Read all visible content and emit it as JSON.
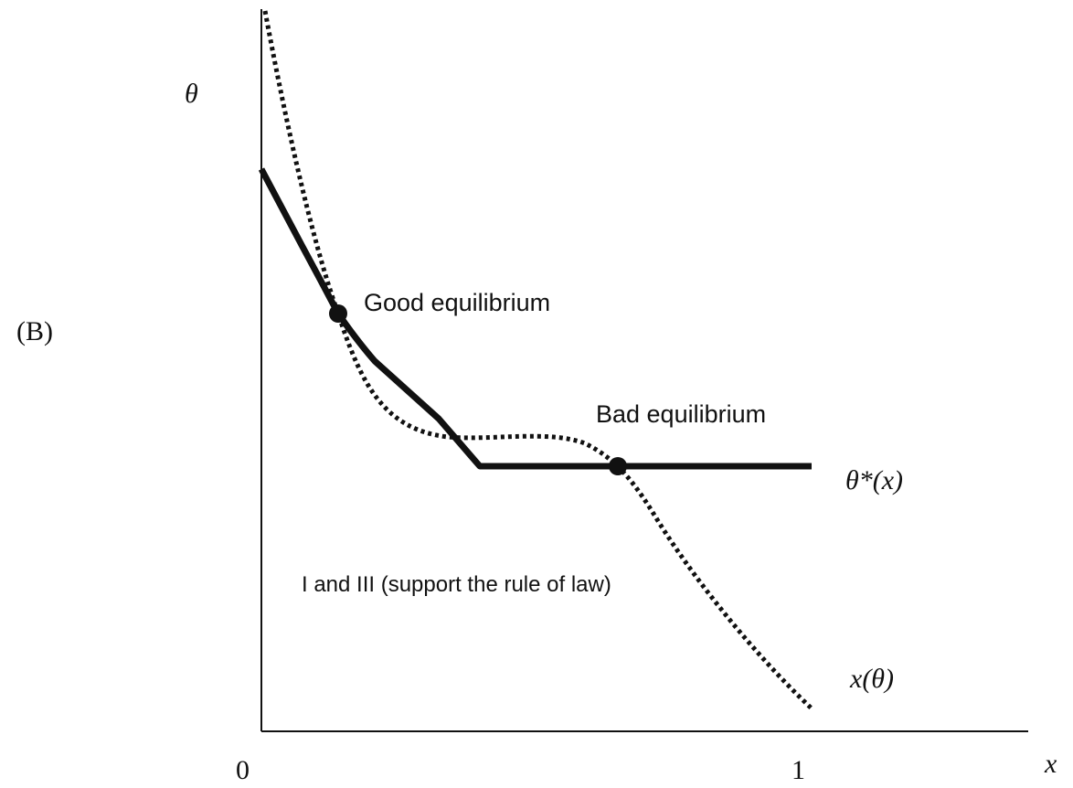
{
  "panel_label": "(B)",
  "y_axis_label": "θ",
  "x_axis_label": "x",
  "x_axis_ticks": [
    "0",
    "1"
  ],
  "annotations": {
    "good": "Good equilibrium",
    "bad": "Bad equilibrium",
    "region": "I and III (support the rule of law)"
  },
  "curves": {
    "threshold": "θ*(x)",
    "response": "x(θ)"
  }
}
